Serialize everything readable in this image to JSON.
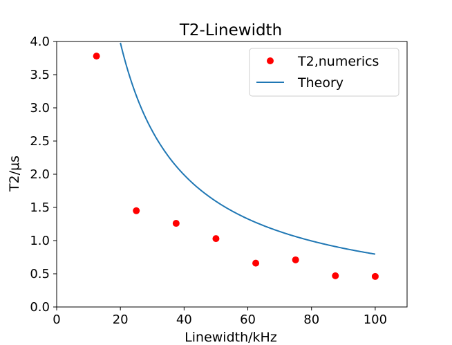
{
  "chart_data": {
    "type": "scatter",
    "title": "T2-Linewidth",
    "xlabel": "Linewidth/kHz",
    "ylabel": "T2/μs",
    "xlim": [
      0,
      110
    ],
    "ylim": [
      0,
      4.0
    ],
    "xticks": [
      0,
      20,
      40,
      60,
      80,
      100
    ],
    "xtick_labels": [
      "0",
      "20",
      "40",
      "60",
      "80",
      "100"
    ],
    "yticks": [
      0,
      0.5,
      1.0,
      1.5,
      2.0,
      2.5,
      3.0,
      3.5,
      4.0
    ],
    "ytick_labels": [
      "0.0",
      "0.5",
      "1.0",
      "1.5",
      "2.0",
      "2.5",
      "3.0",
      "3.5",
      "4.0"
    ],
    "grid": false,
    "legend_position": "top-right",
    "series": [
      {
        "name": "T2,numerics",
        "kind": "scatter",
        "color": "#ff0000",
        "x": [
          12.5,
          25,
          37.5,
          50,
          62.5,
          75,
          87.5,
          100
        ],
        "y": [
          3.78,
          1.45,
          1.26,
          1.03,
          0.66,
          0.71,
          0.47,
          0.46
        ]
      },
      {
        "name": "Theory",
        "kind": "line",
        "color": "#1f77b4",
        "function": "y = 79.6 / x",
        "x_range": [
          20,
          100
        ]
      }
    ]
  }
}
